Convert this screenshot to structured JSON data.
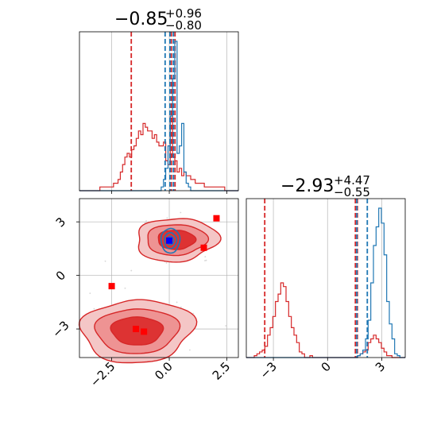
{
  "chart_data": [
    {
      "panel": "marginal-x",
      "type": "histogram",
      "title": {
        "value": "−0.85",
        "upper": "+0.96",
        "lower": "−0.80"
      },
      "xlim": [
        -3.9,
        3.0
      ],
      "grid": true,
      "series": [
        {
          "color": "#d62728",
          "bins": [
            -3.9,
            3.0
          ],
          "counts": [
            0,
            0,
            0,
            0,
            0,
            0,
            0,
            0,
            0,
            1,
            1,
            1,
            1,
            1,
            1,
            2,
            2,
            3,
            5,
            7,
            9,
            10,
            9,
            11,
            12,
            14,
            16,
            15,
            18,
            17,
            16,
            16,
            14,
            15,
            13,
            12,
            12,
            13,
            8,
            7,
            20,
            9,
            8,
            5,
            6,
            4,
            5,
            4,
            4,
            3,
            3,
            2,
            2,
            2,
            2,
            1,
            1,
            1,
            1,
            1,
            1,
            1,
            1,
            1,
            0,
            0,
            0,
            0,
            0,
            0
          ],
          "quantile_lines": [
            -1.65,
            0.09,
            0.25
          ]
        },
        {
          "color": "#1f77b4",
          "bins": [
            -3.9,
            3.0
          ],
          "counts": [
            0,
            0,
            0,
            0,
            0,
            0,
            0,
            0,
            0,
            0,
            0,
            0,
            0,
            0,
            0,
            0,
            0,
            0,
            0,
            0,
            0,
            0,
            0,
            0,
            0,
            0,
            0,
            0,
            0,
            0,
            0,
            0,
            0,
            0,
            0,
            0,
            1,
            3,
            6,
            12,
            20,
            30,
            40,
            10,
            12,
            18,
            5,
            2,
            1,
            0,
            0,
            0,
            0,
            0,
            0,
            0,
            0,
            0,
            0,
            0,
            0,
            0,
            0,
            0,
            0,
            0,
            0,
            0,
            0,
            0
          ],
          "quantile_lines": [
            -0.18,
            0.03,
            0.18
          ]
        }
      ]
    },
    {
      "panel": "marginal-y",
      "type": "histogram",
      "title": {
        "value": "−2.93",
        "upper": "+4.47",
        "lower": "−0.55"
      },
      "xlim": [
        -4.5,
        4.3
      ],
      "grid": true,
      "series": [
        {
          "color": "#d62728",
          "bins": [
            -4.5,
            4.3
          ],
          "counts": [
            0,
            0,
            0,
            1,
            2,
            3,
            4,
            6,
            12,
            16,
            22,
            30,
            34,
            40,
            38,
            30,
            22,
            16,
            12,
            8,
            3,
            2,
            0,
            0,
            1,
            0,
            0,
            0,
            0,
            0,
            0,
            0,
            0,
            0,
            0,
            0,
            0,
            0,
            0,
            0,
            0,
            0,
            1,
            2,
            3,
            4,
            8,
            10,
            12,
            10,
            8,
            5,
            3,
            1,
            1,
            0,
            0,
            0,
            0,
            0
          ],
          "quantile_lines": [
            -3.48,
            1.54,
            1.65
          ]
        },
        {
          "color": "#1f77b4",
          "bins": [
            -4.5,
            4.3
          ],
          "counts": [
            0,
            0,
            0,
            0,
            0,
            0,
            0,
            0,
            0,
            0,
            0,
            0,
            0,
            0,
            0,
            0,
            0,
            0,
            0,
            0,
            0,
            0,
            0,
            0,
            0,
            0,
            0,
            0,
            0,
            0,
            0,
            0,
            0,
            0,
            0,
            0,
            0,
            0,
            0,
            0,
            0,
            0,
            1,
            2,
            4,
            10,
            20,
            40,
            60,
            70,
            80,
            72,
            55,
            30,
            18,
            10,
            2,
            1,
            0,
            0
          ],
          "quantile_lines": [
            1.62,
            2.2
          ]
        }
      ]
    },
    {
      "panel": "joint-2d",
      "type": "contour",
      "xlim": [
        -3.9,
        3.0
      ],
      "ylim": [
        -4.6,
        4.3
      ],
      "grid": true,
      "xticks": [
        {
          "value": -2.5,
          "label": "−2.5"
        },
        {
          "value": 0.0,
          "label": "0.0"
        },
        {
          "value": 2.5,
          "label": "2.5"
        }
      ],
      "yticks": [
        {
          "value": 3,
          "label": "3"
        },
        {
          "value": 0,
          "label": "0"
        },
        {
          "value": -3,
          "label": "−3"
        }
      ],
      "ticks_y_marginal": [
        {
          "value": -3,
          "label": "−3"
        },
        {
          "value": 0,
          "label": "0"
        },
        {
          "value": 3,
          "label": "3"
        }
      ],
      "red_modes": [
        {
          "cx": -1.4,
          "cy": -3.1,
          "sx": 1.1,
          "sy": 0.8
        },
        {
          "cx": 0.3,
          "cy": 2.0,
          "sx": 0.8,
          "sy": 0.55
        }
      ],
      "blue_mode": {
        "cx": 0.05,
        "cy": 1.95,
        "sx": 0.2,
        "sy": 0.35
      },
      "red_square_markers": [
        {
          "x": 2.05,
          "y": 3.2
        },
        {
          "x": -2.5,
          "y": -0.6
        },
        {
          "x": 1.5,
          "y": 1.55
        },
        {
          "x": -1.45,
          "y": -3.0
        },
        {
          "x": -1.1,
          "y": -3.15
        }
      ],
      "blue_square_marker": {
        "x": 0.0,
        "y": 1.95
      }
    }
  ]
}
